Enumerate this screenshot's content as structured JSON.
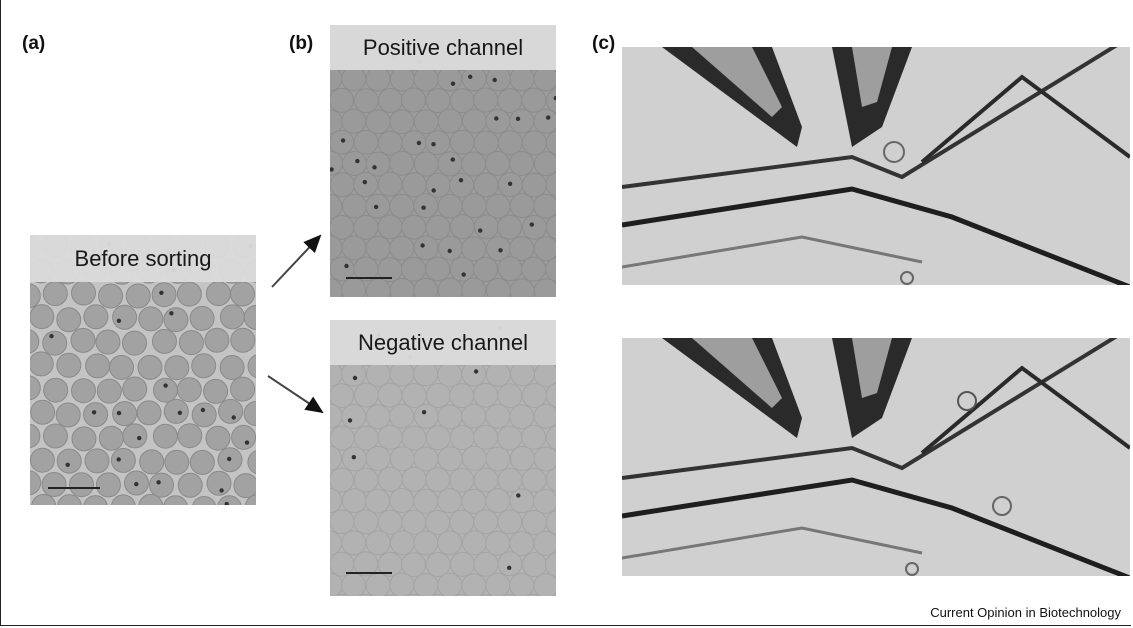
{
  "panels": {
    "a": {
      "label": "(a)",
      "title": "Before sorting"
    },
    "b": {
      "label": "(b)",
      "top_title": "Positive channel",
      "bottom_title": "Negative channel"
    },
    "c": {
      "label": "(c)"
    }
  },
  "credit": "Current Opinion in Biotechnology"
}
